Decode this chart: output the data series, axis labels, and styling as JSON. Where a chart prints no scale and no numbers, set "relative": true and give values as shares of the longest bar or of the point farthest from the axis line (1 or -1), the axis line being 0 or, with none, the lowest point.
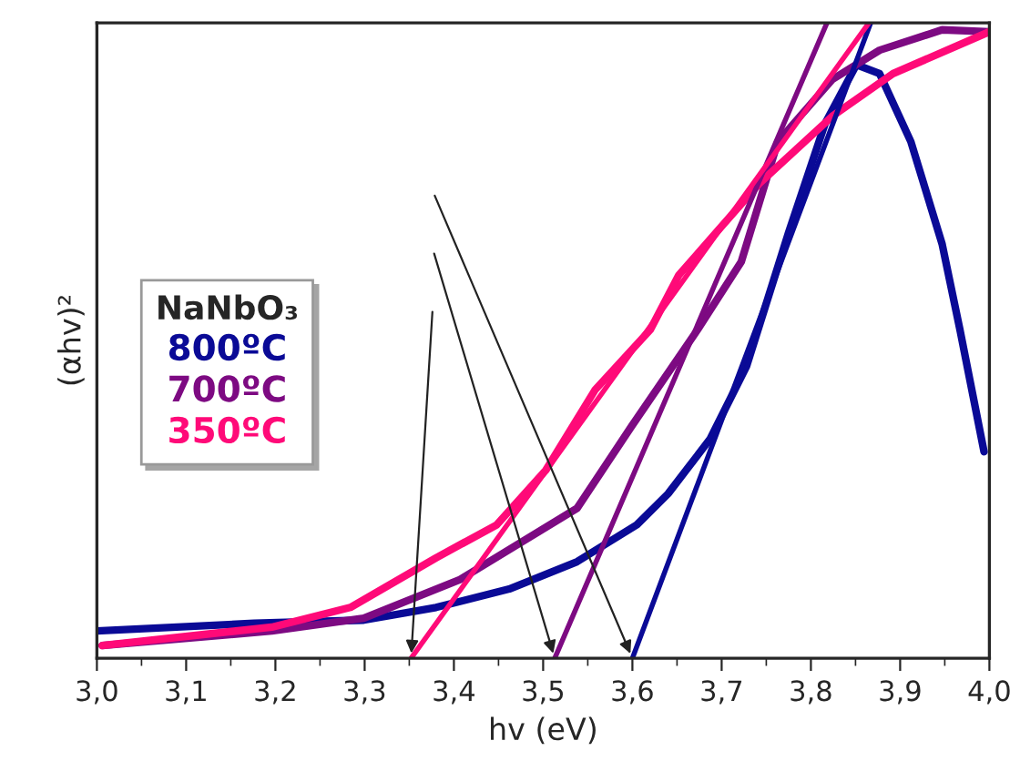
{
  "chart_data": {
    "type": "line",
    "relative": true,
    "xlabel": "hv (eV)",
    "ylabel": "(αhv)²",
    "legend_title": "NaNbO₃",
    "legend": "left",
    "grid": false,
    "marker": "none",
    "line_style": "solid",
    "xlim": [
      3.0,
      4.0
    ],
    "xticks": [
      {
        "value": 3.0,
        "label": "3,0"
      },
      {
        "value": 3.1,
        "label": "3,1"
      },
      {
        "value": 3.2,
        "label": "3,2"
      },
      {
        "value": 3.3,
        "label": "3,3"
      },
      {
        "value": 3.4,
        "label": "3,4"
      },
      {
        "value": 3.5,
        "label": "3,5"
      },
      {
        "value": 3.6,
        "label": "3,6"
      },
      {
        "value": 3.7,
        "label": "3,7"
      },
      {
        "value": 3.8,
        "label": "3,8"
      },
      {
        "value": 3.9,
        "label": "3,9"
      },
      {
        "value": 4.0,
        "label": "4,0"
      }
    ],
    "series": [
      {
        "name": "800ºC",
        "color": "#0a0a96",
        "x": [
          3.0,
          3.176,
          3.299,
          3.38,
          3.462,
          3.538,
          3.605,
          3.64,
          3.687,
          3.728,
          3.775,
          3.816,
          3.851,
          3.877,
          3.912,
          3.947,
          3.967,
          3.994
        ],
        "values": [
          0.043,
          0.055,
          0.06,
          0.08,
          0.109,
          0.152,
          0.21,
          0.259,
          0.345,
          0.46,
          0.67,
          0.842,
          0.934,
          0.92,
          0.813,
          0.652,
          0.517,
          0.325
        ]
      },
      {
        "name": "700ºC",
        "color": "#7d0a82",
        "x": [
          3.006,
          3.196,
          3.299,
          3.407,
          3.538,
          3.599,
          3.673,
          3.722,
          3.763,
          3.824,
          3.877,
          3.947,
          4.0
        ],
        "values": [
          0.02,
          0.043,
          0.063,
          0.124,
          0.236,
          0.365,
          0.517,
          0.624,
          0.813,
          0.911,
          0.957,
          0.989,
          0.986
        ]
      },
      {
        "name": "350ºC",
        "color": "#ff0a78",
        "x": [
          3.006,
          3.196,
          3.284,
          3.38,
          3.448,
          3.503,
          3.558,
          3.62,
          3.652,
          3.742,
          3.824,
          3.892,
          4.0
        ],
        "values": [
          0.02,
          0.049,
          0.08,
          0.158,
          0.21,
          0.296,
          0.422,
          0.517,
          0.603,
          0.747,
          0.853,
          0.92,
          0.986
        ]
      },
      {
        "color": "#0a0a96",
        "x": [
          3.6,
          3.867
        ],
        "values": [
          0,
          1
        ]
      },
      {
        "color": "#7d0a82",
        "x": [
          3.513,
          3.818
        ],
        "values": [
          0,
          1
        ]
      },
      {
        "color": "#ff0a78",
        "x": [
          3.352,
          3.865
        ],
        "values": [
          0,
          1
        ]
      }
    ]
  }
}
